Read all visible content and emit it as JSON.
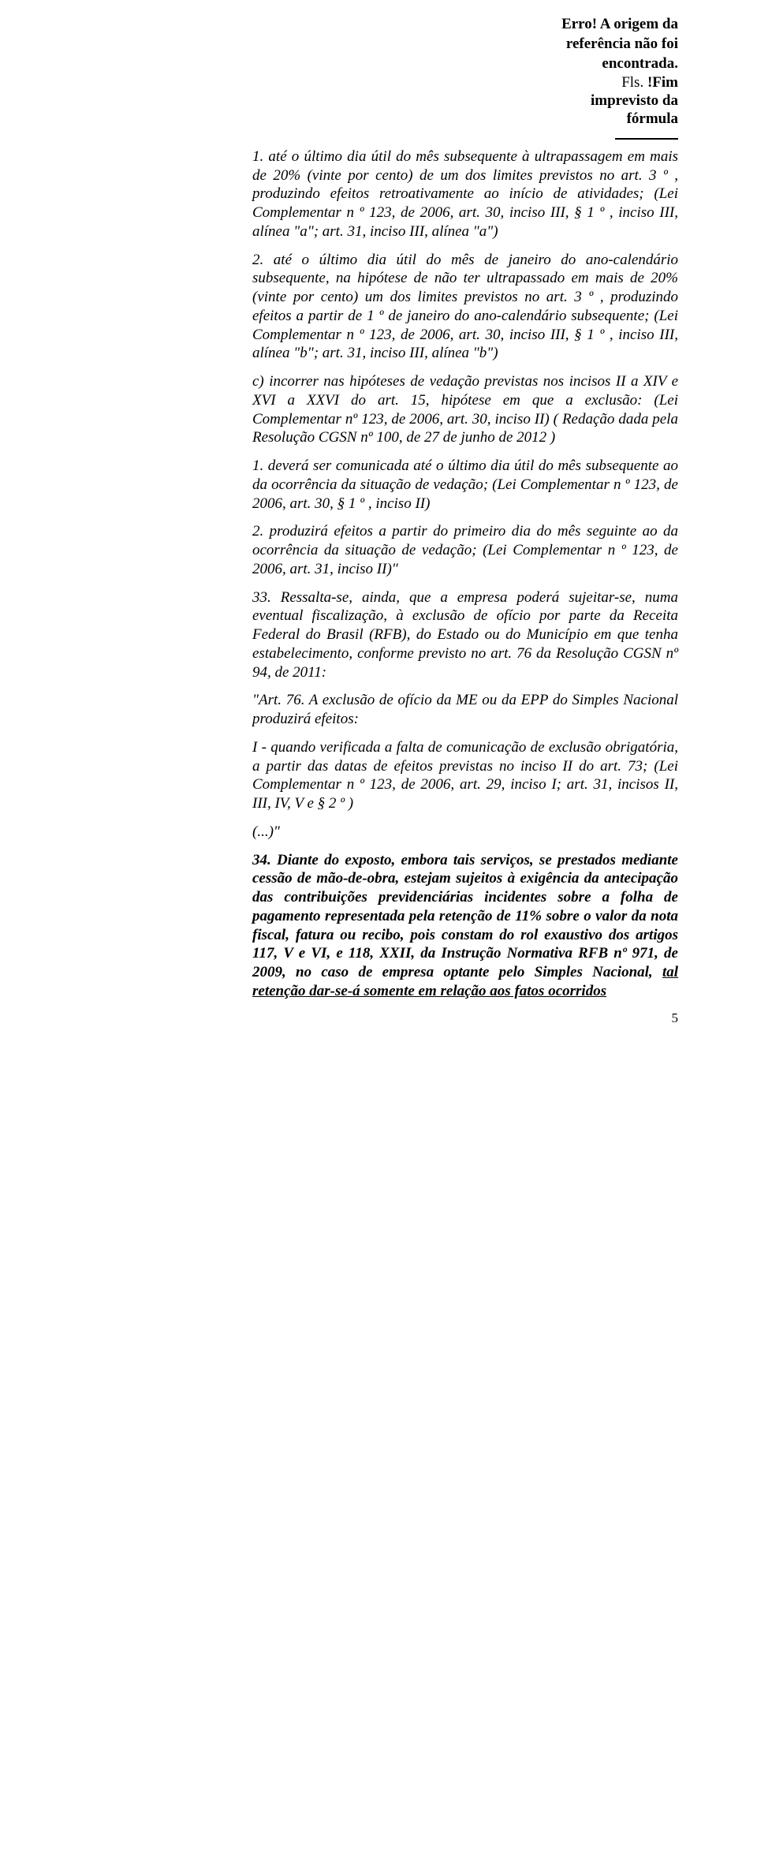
{
  "header": {
    "error_line1": "Erro! A origem da",
    "error_line2": "referência não foi",
    "error_line3": "encontrada.",
    "fls_label": "Fls. ",
    "fls_bold1": "!Fim",
    "fls_bold2": "imprevisto da",
    "fls_bold3": "fórmula"
  },
  "p1": "1. até o último dia útil do mês subsequente à ultrapassagem em mais de 20% (vinte por cento) de um dos limites previstos no art. 3 º , produzindo efeitos retroativamente ao início de atividades; (Lei Complementar n º 123, de 2006, art. 30, inciso III, § 1 º , inciso III, alínea \"a\"; art. 31, inciso III, alínea \"a\")",
  "p2": "2. até o último dia útil do mês de janeiro do ano-calendário subsequente, na hipótese de não ter ultrapassado em mais de 20% (vinte por cento) um dos limites previstos no art. 3 º , produzindo efeitos a partir de 1 º de janeiro do ano-calendário subsequente; (Lei Complementar n º 123, de 2006, art. 30, inciso III, § 1 º , inciso III, alínea \"b\"; art. 31, inciso III, alínea \"b\")",
  "p3": "c) incorrer nas hipóteses de vedação previstas nos incisos II a XIV e XVI a XXVI do art. 15, hipótese em que a exclusão: (Lei Complementar nº 123, de 2006, art. 30, inciso II) ( Redação dada pela Resolução CGSN nº 100, de 27 de junho de 2012 )",
  "p4": "1. deverá ser comunicada até o último dia útil do mês subsequente ao da ocorrência da situação de vedação; (Lei Complementar n º 123, de 2006, art. 30, § 1 º , inciso II)",
  "p5": "2. produzirá efeitos a partir do primeiro dia do mês seguinte ao da ocorrência da situação de vedação; (Lei Complementar n º 123, de 2006, art. 31, inciso II)\"",
  "p6": "33. Ressalta-se, ainda, que a empresa poderá sujeitar-se, numa eventual fiscalização, à exclusão de ofício por parte da Receita Federal do Brasil (RFB), do Estado ou do Município em que tenha estabelecimento, conforme previsto no art. 76 da Resolução CGSN nº 94, de 2011:",
  "p7": "\"Art. 76. A exclusão de ofício da ME ou da EPP do Simples Nacional produzirá efeitos:",
  "p8": "I - quando verificada a falta de comunicação de exclusão obrigatória, a partir das datas de efeitos previstas no inciso II do art. 73; (Lei Complementar n º 123, de 2006, art. 29, inciso I; art. 31, incisos II, III, IV, V e § 2 º )",
  "p9": "(...)\"",
  "p10_a": "34. Diante do exposto, embora tais serviços, se prestados mediante cessão de mão-de-obra, estejam sujeitos à exigência da antecipação das contribuições previdenciárias incidentes sobre a folha de pagamento representada pela retenção de 11% sobre o valor da nota fiscal, fatura ou recibo, pois constam do rol exaustivo dos artigos 117, V e VI, e 118, XXII, da Instrução Normativa RFB nº 971, de 2009, no caso de empresa optante pelo Simples Nacional, ",
  "p10_b": "tal retenção dar-se-á somente em relação aos fatos ocorridos",
  "pagenum": "5"
}
